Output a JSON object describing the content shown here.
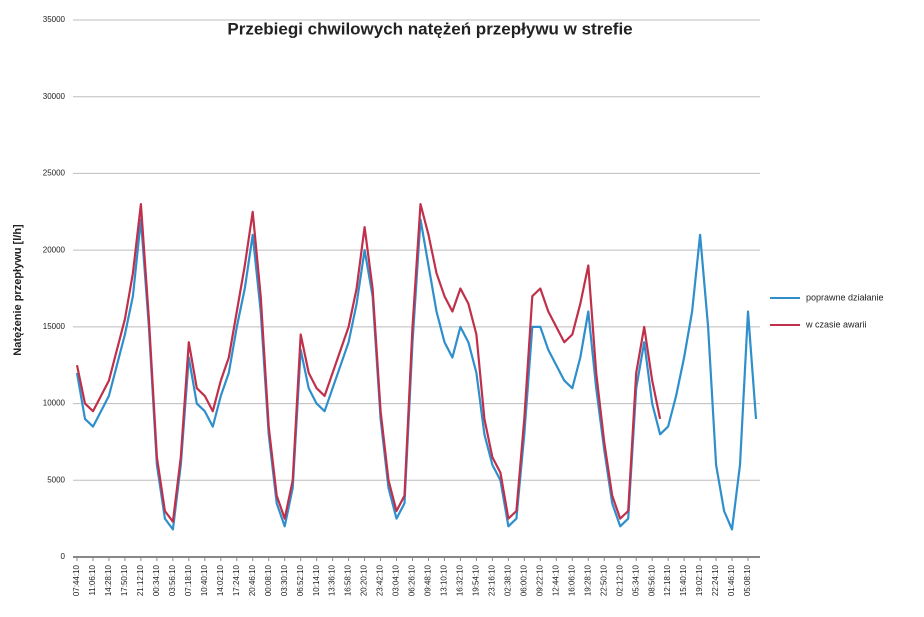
{
  "chart_data": {
    "type": "line",
    "title": "Przebiegi chwilowych natężeń przepływu w strefie",
    "y_label": "Natężenie przepływu  [l/h]",
    "categories": [
      "07:44:10",
      null,
      "11:06:10",
      null,
      "14:28:10",
      null,
      "17:50:10",
      null,
      "21:12:10",
      null,
      "00:34:10",
      null,
      "03:56:10",
      null,
      "07:18:10",
      null,
      "10:40:10",
      null,
      "14:02:10",
      null,
      "17:24:10",
      null,
      "20:46:10",
      null,
      "00:08:10",
      null,
      "03:30:10",
      null,
      "06:52:10",
      null,
      "10:14:10",
      null,
      "13:36:10",
      null,
      "16:58:10",
      null,
      "20:20:10",
      null,
      "23:42:10",
      null,
      "03:04:10",
      null,
      "06:26:10",
      null,
      "09:48:10",
      null,
      "13:10:10",
      null,
      "16:32:10",
      null,
      "19:54:10",
      null,
      "23:16:10",
      null,
      "02:38:10",
      null,
      "06:00:10",
      null,
      "09:22:10",
      null,
      "12:44:10",
      null,
      "16:06:10",
      null,
      "19:28:10",
      null,
      "22:50:10",
      null,
      "02:12:10",
      null,
      "05:34:10",
      null,
      "08:56:10",
      null,
      "12:18:10",
      null,
      "15:40:10",
      null,
      "19:02:10",
      null,
      "22:24:10",
      null,
      "01:46:10",
      null,
      "05:08:10",
      null
    ],
    "series": [
      {
        "name": "poprawne działanie",
        "color": "#2f8fcc",
        "values": [
          12000,
          9000,
          8500,
          9500,
          10500,
          12500,
          14500,
          17000,
          22000,
          15000,
          6000,
          2500,
          1800,
          6000,
          13000,
          10000,
          9500,
          8500,
          10500,
          12000,
          15000,
          17500,
          21000,
          16000,
          8000,
          3500,
          2000,
          4500,
          13500,
          11000,
          10000,
          9500,
          11000,
          12500,
          14000,
          16500,
          20000,
          17000,
          9000,
          4500,
          2500,
          3500,
          14000,
          22000,
          19000,
          16000,
          14000,
          13000,
          15000,
          14000,
          12000,
          8000,
          6000,
          5000,
          2000,
          2500,
          8000,
          15000,
          15000,
          13500,
          12500,
          11500,
          11000,
          13000,
          16000,
          11000,
          7000,
          3500,
          2000,
          2500,
          11000,
          14000,
          10000,
          8000,
          8500,
          10500,
          13000,
          16000,
          21000,
          15000,
          6000,
          3000,
          1800,
          6000,
          16000,
          9000
        ]
      },
      {
        "name": "w czasie awarii",
        "color": "#c0304a",
        "values": [
          12500,
          10000,
          9500,
          10500,
          11500,
          13500,
          15500,
          18500,
          23000,
          15500,
          6500,
          3000,
          2300,
          6500,
          14000,
          11000,
          10500,
          9500,
          11500,
          13000,
          16000,
          19000,
          22500,
          17000,
          8500,
          4000,
          2500,
          5000,
          14500,
          12000,
          11000,
          10500,
          12000,
          13500,
          15000,
          17500,
          21500,
          17500,
          9500,
          5000,
          3000,
          4000,
          15000,
          23000,
          21000,
          18500,
          17000,
          16000,
          17500,
          16500,
          14500,
          9000,
          6500,
          5500,
          2500,
          3000,
          9000,
          17000,
          17500,
          16000,
          15000,
          14000,
          14500,
          16500,
          19000,
          12000,
          7500,
          4000,
          2500,
          3000,
          12000,
          15000,
          11500,
          9000,
          null,
          null,
          null,
          null,
          null,
          null,
          null,
          null,
          null,
          null,
          null,
          null
        ]
      }
    ],
    "ylim": [
      0,
      35000
    ],
    "yticks": [
      0,
      5000,
      10000,
      15000,
      20000,
      25000,
      30000,
      35000
    ],
    "grid": true,
    "legend": "right"
  }
}
